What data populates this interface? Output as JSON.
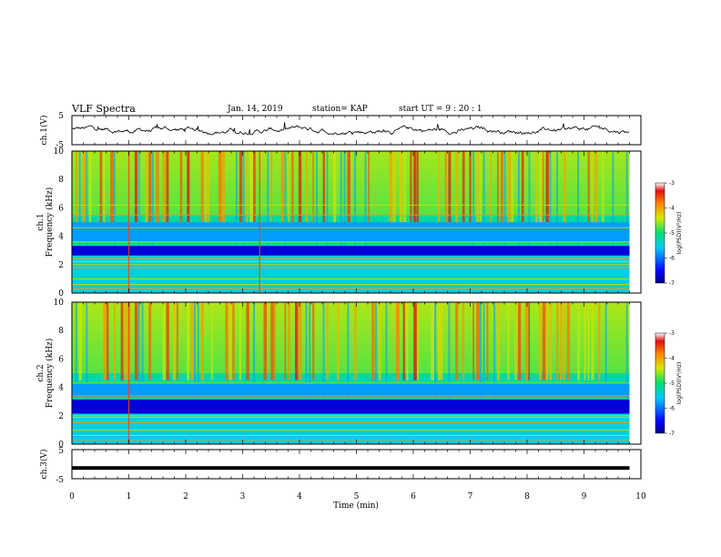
{
  "header": {
    "title": "VLF Spectra",
    "date": "Jan. 14, 2019",
    "station": "station= KAP",
    "start": "start UT =  9 : 20 : 1"
  },
  "colors": {
    "spectrogram_low": "#00008c",
    "spectrogram_mid": "#00e070",
    "spectrogram_high": "#e01010",
    "trace": "#000000",
    "frame": "#000000"
  },
  "colorbar": {
    "label": "log(PSD)(V²/Hz)",
    "ticks": [
      "-3",
      "-4",
      "-5",
      "-6",
      "-7"
    ]
  },
  "chart_data": [
    {
      "type": "line",
      "panel": "ch1-waveform",
      "ylabel": "ch.1(V)",
      "yticks": [
        "5",
        "-5"
      ],
      "ylim": [
        -5,
        5
      ],
      "x_range_min": [
        0,
        9.8
      ],
      "description_values": "noisy waveform fluctuating roughly between -1.5 and +2.0 V"
    },
    {
      "type": "heatmap",
      "panel": "ch1-spectrogram",
      "ylabel": "ch.1",
      "ylabel2": "Frequency (kHz)",
      "yticks": [
        "0",
        "2",
        "4",
        "6",
        "8",
        "10"
      ],
      "ylim": [
        0,
        10
      ],
      "x_range_min": [
        0,
        9.8
      ],
      "quiet_band_khz": [
        2.6,
        3.4
      ],
      "low_band_khz": [
        3.6,
        5.0
      ],
      "intense_above_khz": 5.5,
      "lines_khz": [
        0.3,
        0.6,
        1.0,
        1.8,
        2.0,
        2.2,
        2.4,
        3.6,
        4.6,
        5.5,
        6.2
      ],
      "sferic_min": [
        1.0,
        3.3
      ]
    },
    {
      "type": "heatmap",
      "panel": "ch2-spectrogram",
      "ylabel": "ch.2",
      "ylabel2": "Frequency (kHz)",
      "yticks": [
        "0",
        "2",
        "4",
        "6",
        "8",
        "10"
      ],
      "ylim": [
        0,
        10
      ],
      "x_range_min": [
        0,
        9.8
      ],
      "quiet_band_khz": [
        2.1,
        3.2
      ],
      "low_band_khz": [
        3.3,
        4.4
      ],
      "intense_above_khz": 5.0,
      "lines_khz": [
        0.3,
        0.6,
        1.0,
        1.5,
        1.9,
        2.0,
        3.4,
        4.3
      ],
      "sferic_min": [
        1.0
      ]
    },
    {
      "type": "line",
      "panel": "ch3-waveform",
      "ylabel": "ch.3(V)",
      "yticks": [
        "5",
        "-5"
      ],
      "ylim": [
        -5,
        5
      ],
      "x_range_min": [
        0,
        9.8
      ],
      "constant_value": -1.3,
      "xlabel": "Time (min)",
      "xticks": [
        "0",
        "1",
        "2",
        "3",
        "4",
        "5",
        "6",
        "7",
        "8",
        "9",
        "10"
      ],
      "xlim": [
        0,
        10
      ]
    }
  ]
}
